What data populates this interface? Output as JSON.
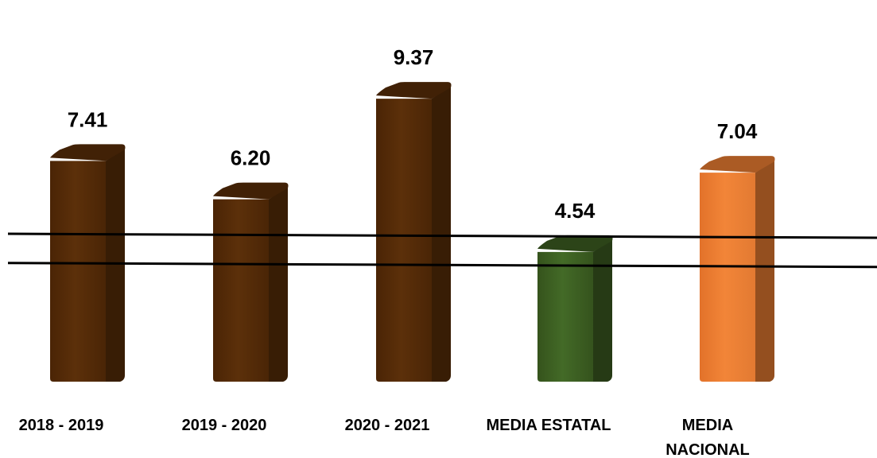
{
  "chart_data": {
    "type": "bar",
    "categories": [
      "2018 - 2019",
      "2019 - 2020",
      "2020 - 2021",
      "MEDIA ESTATAL",
      "MEDIA\nNACIONAL"
    ],
    "values": [
      7.41,
      6.2,
      9.37,
      4.54,
      7.04
    ],
    "value_labels": [
      "7.41",
      "6.20",
      "9.37",
      "4.54",
      "7.04"
    ],
    "bar_colors": [
      "#5a2e08",
      "#5a2e08",
      "#5a2e08",
      "#3d5e22",
      "#ee7f32"
    ],
    "reference_lines": [
      4.56,
      3.64
    ],
    "title": "",
    "xlabel": "",
    "ylabel": "",
    "ylim": [
      0,
      10.5
    ],
    "grid": false,
    "legend": "none",
    "style": "3d-rounded-bars"
  }
}
